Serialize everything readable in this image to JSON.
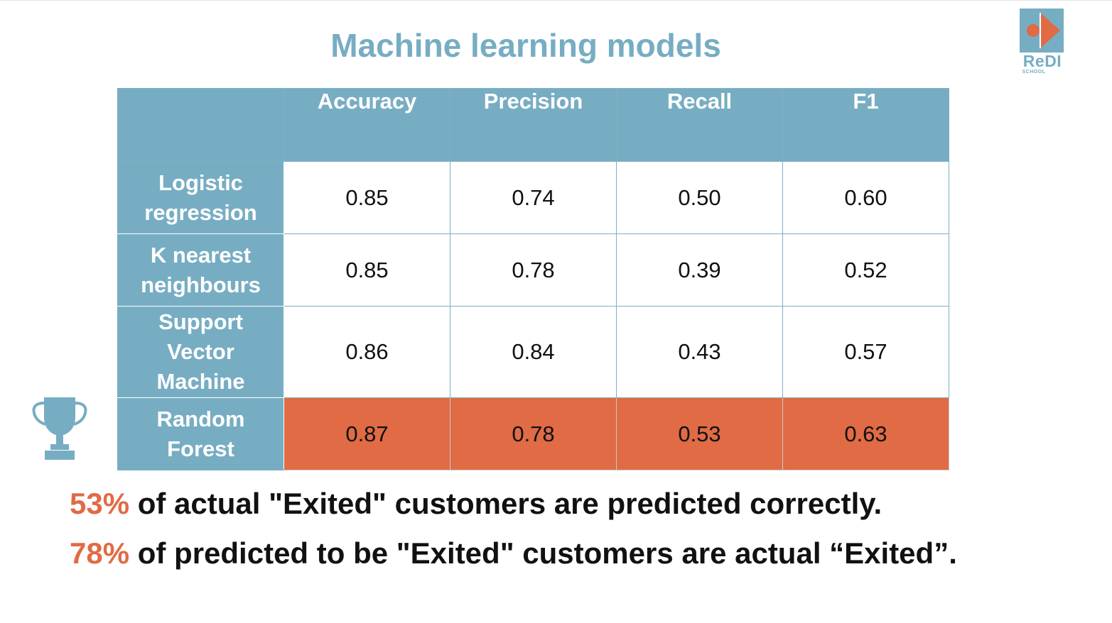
{
  "title": "Machine learning models",
  "logo": {
    "name": "ReDI",
    "sub": "SCHOOL",
    "colors": {
      "blue": "#77adc3",
      "orange": "#e06b45"
    }
  },
  "trophy_icon": "trophy-icon",
  "colors": {
    "header": "#77adc3",
    "highlight": "#e06b45",
    "text": "#111111"
  },
  "chart_data": {
    "type": "table",
    "title": "Machine learning models",
    "columns": [
      "",
      "Accuracy",
      "Precision",
      "Recall",
      "F1"
    ],
    "rows": [
      {
        "model": "Logistic regression",
        "label_lines": [
          "Logistic",
          "regression"
        ],
        "values": [
          "0.85",
          "0.74",
          "0.50",
          "0.60"
        ],
        "highlight": false
      },
      {
        "model": "K nearest neighbours",
        "label_lines": [
          "K nearest",
          "neighbours"
        ],
        "values": [
          "0.85",
          "0.78",
          "0.39",
          "0.52"
        ],
        "highlight": false
      },
      {
        "model": "Support Vector Machine",
        "label_lines": [
          "Support",
          "Vector",
          "Machine"
        ],
        "values": [
          "0.86",
          "0.84",
          "0.43",
          "0.57"
        ],
        "highlight": false
      },
      {
        "model": "Random Forest",
        "label_lines": [
          "Random",
          "Forest"
        ],
        "values": [
          "0.87",
          "0.78",
          "0.53",
          "0.63"
        ],
        "highlight": true
      }
    ]
  },
  "notes": [
    {
      "pct": "53%",
      "text": " of actual \"Exited\" customers are predicted correctly."
    },
    {
      "pct": "78%",
      "text": " of predicted to be \"Exited\" customers are actual “Exited”."
    }
  ]
}
